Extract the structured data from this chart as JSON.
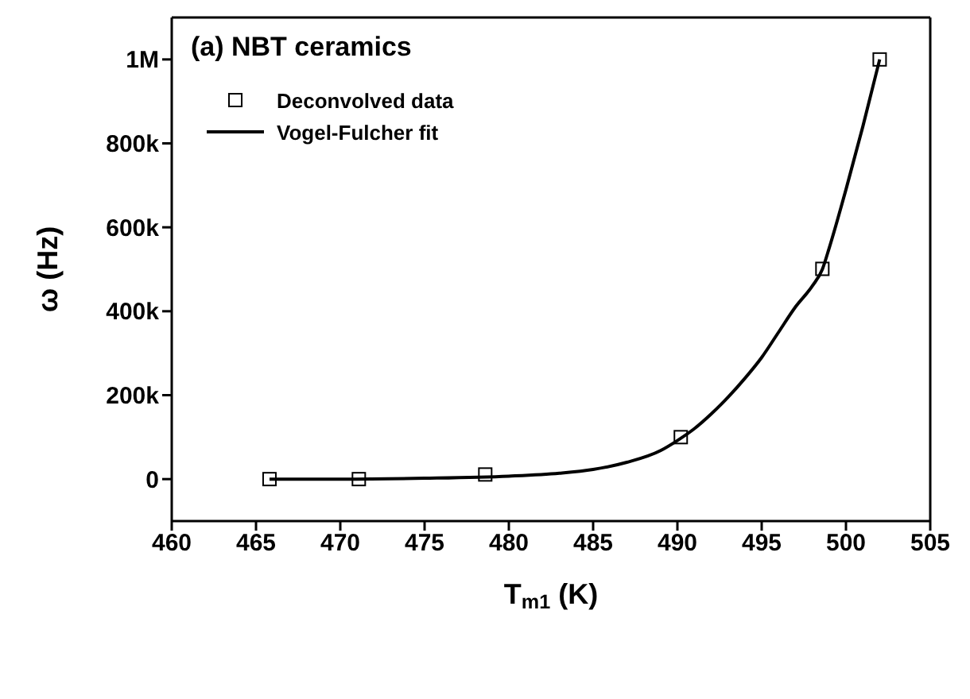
{
  "chart_data": {
    "type": "scatter",
    "title": "(a) NBT ceramics",
    "xlabel": "T$_{m1}$ (K)",
    "ylabel": "ω (Hz)",
    "xlim": [
      460,
      505
    ],
    "xticks": [
      460,
      465,
      470,
      475,
      480,
      485,
      490,
      495,
      500,
      505
    ],
    "ylim": [
      -100000,
      1100000
    ],
    "yticks": [
      {
        "value": 0,
        "label": "0"
      },
      {
        "value": 200000,
        "label": "200k"
      },
      {
        "value": 400000,
        "label": "400k"
      },
      {
        "value": 600000,
        "label": "600k"
      },
      {
        "value": 800000,
        "label": "800k"
      },
      {
        "value": 1000000,
        "label": "1M"
      }
    ],
    "legend": "top left",
    "series": [
      {
        "name": "Deconvolved data",
        "marker": "square",
        "color": "#000000",
        "x": [
          465.8,
          471.1,
          478.6,
          490.2,
          498.6,
          502.0
        ],
        "values": [
          0,
          0,
          11000,
          100000,
          501000,
          1000000
        ]
      },
      {
        "name": "Vogel-Fulcher fit",
        "type": "line",
        "marker": "none",
        "line_style": "solid",
        "color": "#000000",
        "x": [
          465.8,
          470,
          475,
          480,
          483,
          485,
          487,
          489,
          490,
          491,
          492,
          493,
          494,
          495,
          496,
          497,
          498,
          498.6,
          499,
          500,
          501,
          502
        ],
        "values": [
          0,
          0,
          2000,
          7000,
          14000,
          23000,
          40000,
          68000,
          92000,
          120000,
          155000,
          195000,
          240000,
          290000,
          350000,
          410000,
          460000,
          500000,
          550000,
          690000,
          840000,
          1000000
        ]
      }
    ]
  }
}
